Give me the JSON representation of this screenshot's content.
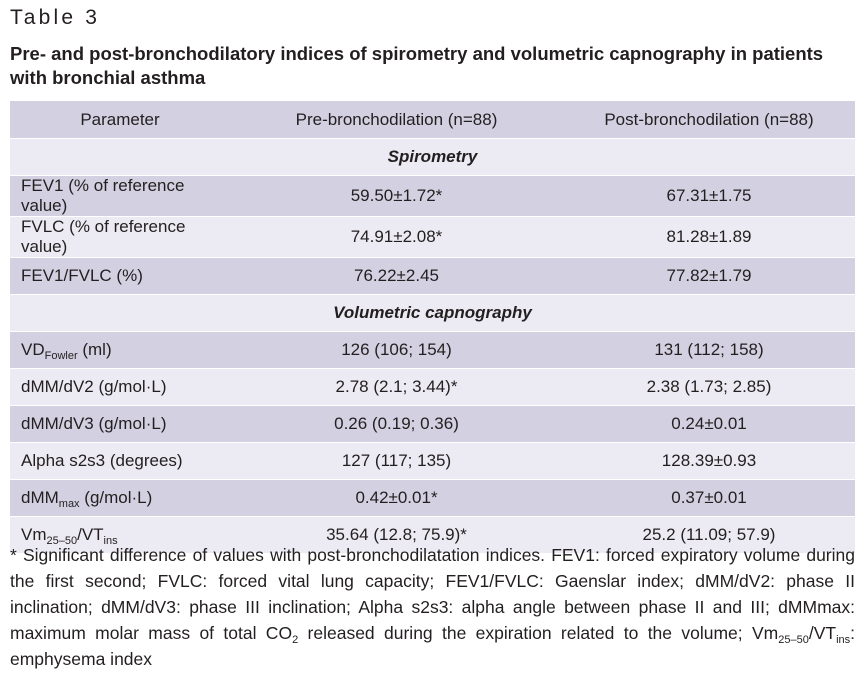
{
  "table_label": "Table 3",
  "caption": "Pre- and post-bronchodilatory indices of spirometry and volumetric capnography in patients with bronchial asthma",
  "header": {
    "parameter": "Parameter",
    "pre": "Pre-bronchodilation (n=88)",
    "post": "Post-bronchodilation (n=88)"
  },
  "sections": {
    "spirometry": "Spirometry",
    "capnography": "Volumetric capnography"
  },
  "rows": [
    {
      "param": "FEV1 (% of reference value)",
      "pre": "59.50±1.72*",
      "post": "67.31±1.75"
    },
    {
      "param": "FVLC (% of reference value)",
      "pre": "74.91±2.08*",
      "post": "81.28±1.89"
    },
    {
      "param": "FEV1/FVLC (%)",
      "pre": "76.22±2.45",
      "post": "77.82±1.79"
    },
    {
      "param_main": "VD",
      "param_sub": "Fowler",
      "param_tail": " (ml)",
      "pre": "126 (106; 154)",
      "post": "131 (112; 158)"
    },
    {
      "param": "dMM/dV2 (g/mol·L)",
      "pre": "2.78 (2.1; 3.44)*",
      "post": "2.38 (1.73; 2.85)"
    },
    {
      "param": "dMM/dV3 (g/mol·L)",
      "pre": "0.26 (0.19; 0.36)",
      "post": "0.24±0.01"
    },
    {
      "param": "Alpha s2s3 (degrees)",
      "pre": "127 (117; 135)",
      "post": "128.39±0.93"
    },
    {
      "param_main": "dMM",
      "param_sub": "max",
      "param_tail": " (g/mol·L)",
      "pre": "0.42±0.01*",
      "post": "0.37±0.01"
    },
    {
      "param_main": "Vm",
      "param_sub": "25–50",
      "param_mid": "/VT",
      "param_sub2": "ins",
      "pre": "35.64 (12.8; 75.9)*",
      "post": "25.2 (11.09; 57.9)"
    }
  ],
  "footnote": {
    "part1": "* Significant difference of values with post-bronchodilatation indices. FEV1: forced expiratory volume during the first second; FVLC: forced vital lung capacity; FEV1/FVLC: Gaenslar index; dMM/dV2: phase II inclination; dMM/dV3: phase III inclination; Alpha s2s3: alpha angle between phase II and III; dMMmax: maximum molar mass of total CO",
    "sub_co2": "2",
    "part2": " released during the expiration related to the volume; Vm",
    "sub_vm": "25–50",
    "part3": "/VT",
    "sub_ins": "ins",
    "part4": ": emphysema index"
  }
}
